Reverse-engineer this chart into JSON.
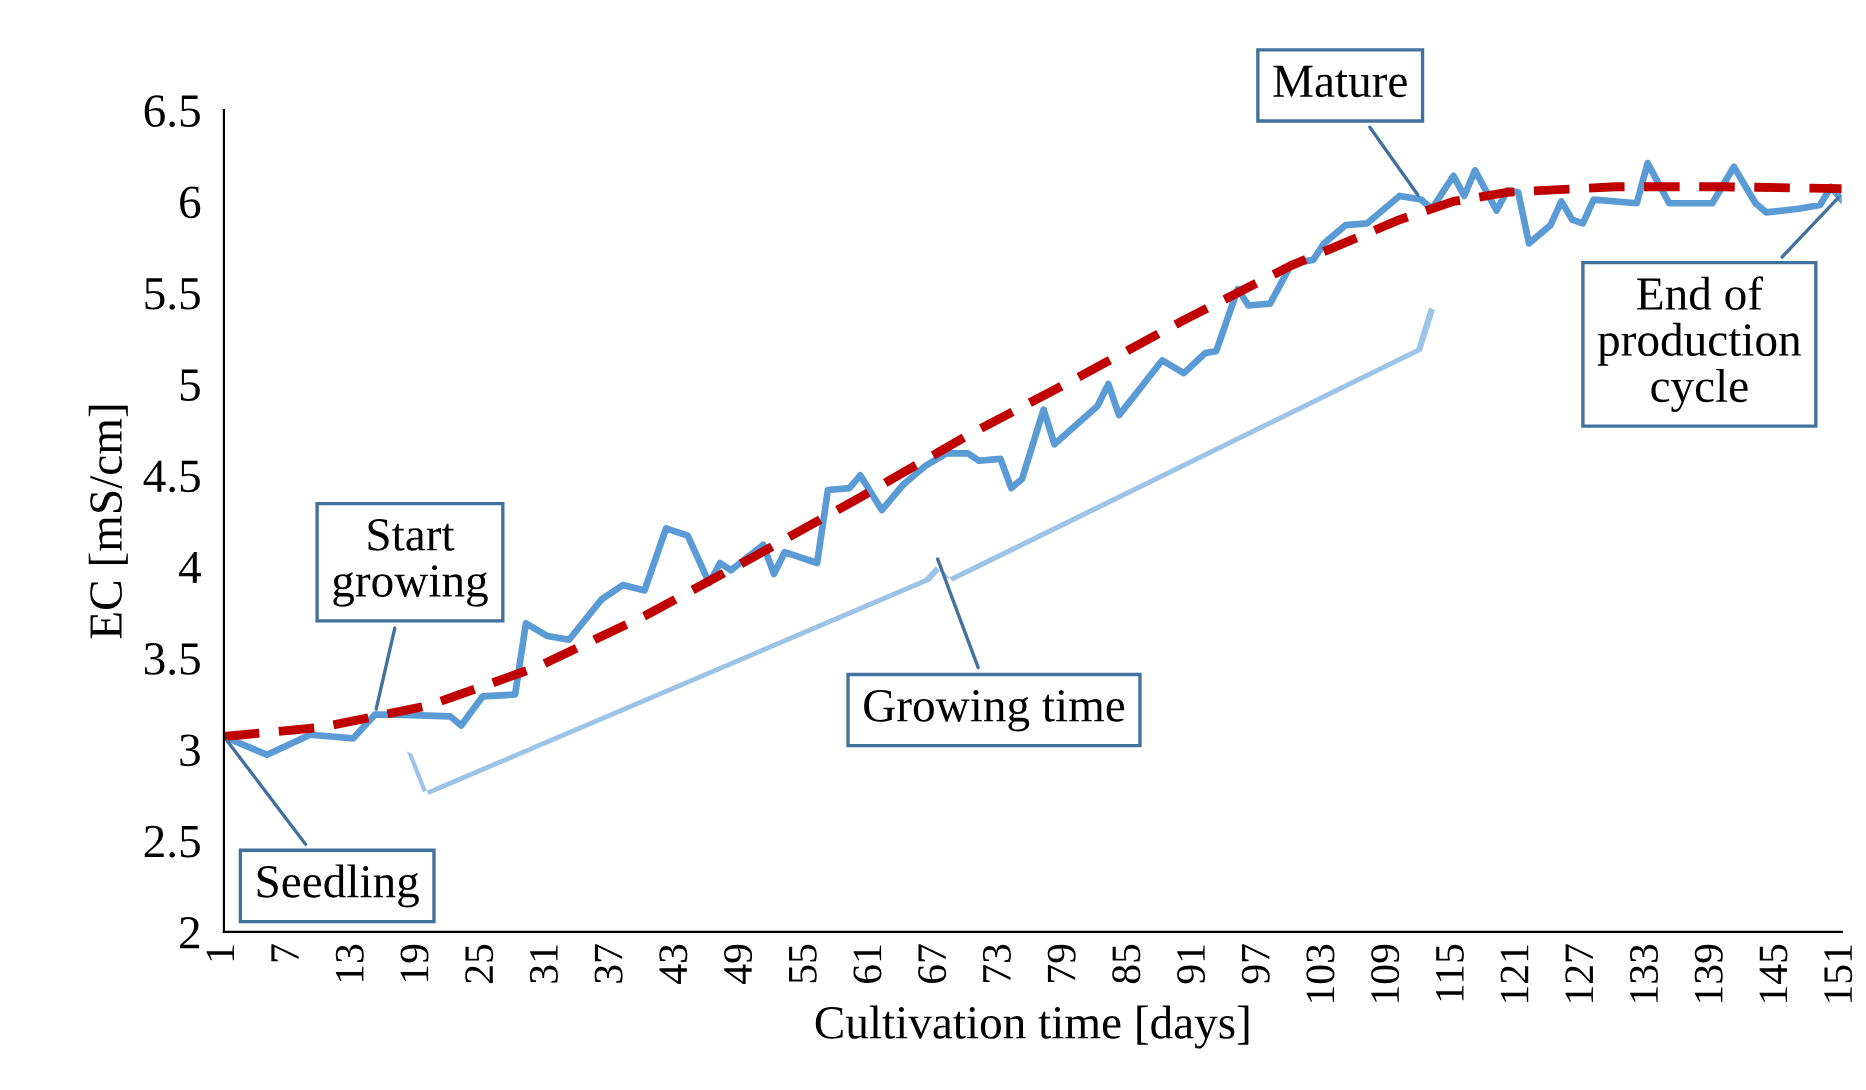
{
  "chart_data": {
    "type": "line",
    "xlabel": "Cultivation time [days]",
    "ylabel": "EC [mS/cm]",
    "xlim": [
      1,
      151
    ],
    "xticks": [
      1,
      7,
      13,
      19,
      25,
      31,
      37,
      43,
      49,
      55,
      61,
      67,
      73,
      79,
      85,
      91,
      97,
      103,
      109,
      115,
      121,
      127,
      133,
      139,
      145,
      151
    ],
    "ylim": [
      2,
      6.5
    ],
    "yticks": [
      2,
      2.5,
      3,
      3.5,
      4,
      4.5,
      5,
      5.5,
      6,
      6.5
    ],
    "grid": false,
    "marker": "none",
    "series": [
      {
        "color": "#5b9bd5",
        "line_style": "solid",
        "x": [
          1,
          5,
          9,
          13,
          15,
          17,
          22,
          23,
          25,
          28,
          29,
          31,
          33,
          36,
          38,
          40,
          42,
          44,
          46,
          47,
          48,
          51,
          52,
          53,
          56,
          57,
          59,
          60,
          62,
          64,
          66,
          68,
          70,
          71,
          73,
          74,
          75,
          77,
          78,
          82,
          83,
          84,
          88,
          90,
          92,
          93,
          95,
          96,
          98,
          100,
          102,
          103,
          105,
          107,
          110,
          112,
          113,
          115,
          116,
          117,
          119,
          120,
          121,
          122,
          124,
          125,
          126,
          127,
          128,
          132,
          133,
          135,
          139,
          141,
          143,
          144,
          147,
          149,
          150,
          151
        ],
        "values": [
          3.07,
          2.97,
          3.08,
          3.06,
          3.19,
          3.19,
          3.18,
          3.13,
          3.29,
          3.3,
          3.69,
          3.62,
          3.6,
          3.82,
          3.9,
          3.87,
          4.21,
          4.17,
          3.91,
          4.02,
          3.98,
          4.12,
          3.96,
          4.08,
          4.02,
          4.42,
          4.43,
          4.5,
          4.31,
          4.45,
          4.55,
          4.62,
          4.62,
          4.58,
          4.59,
          4.43,
          4.48,
          4.86,
          4.67,
          4.88,
          5.0,
          4.83,
          5.13,
          5.06,
          5.17,
          5.18,
          5.52,
          5.43,
          5.44,
          5.66,
          5.68,
          5.77,
          5.87,
          5.88,
          6.03,
          6.01,
          5.96,
          6.14,
          6.03,
          6.17,
          5.95,
          6.06,
          6.05,
          5.77,
          5.87,
          6.0,
          5.9,
          5.88,
          6.01,
          5.99,
          6.21,
          5.99,
          5.99,
          6.19,
          5.99,
          5.94,
          5.96,
          5.98,
          6.08,
          6.01
        ]
      },
      {
        "color": "#c00000",
        "line_style": "dashed",
        "x": [
          1,
          10,
          20,
          30,
          40,
          50,
          60,
          70,
          80,
          90,
          100,
          110,
          115,
          120,
          130,
          140,
          151
        ],
        "values": [
          3.07,
          3.12,
          3.24,
          3.45,
          3.73,
          4.05,
          4.38,
          4.72,
          5.03,
          5.35,
          5.65,
          5.9,
          6.0,
          6.05,
          6.08,
          6.08,
          6.07
        ]
      }
    ],
    "annotations": [
      {
        "text": "Seedling",
        "x": 1,
        "y": 3.07
      },
      {
        "text": "Start growing",
        "x": 15,
        "y": 3.19
      },
      "Growing time",
      {
        "text": "Mature",
        "x": 112,
        "y": 6.01
      },
      {
        "text": "End of production cycle",
        "x": 151,
        "y": 6.04
      }
    ]
  }
}
